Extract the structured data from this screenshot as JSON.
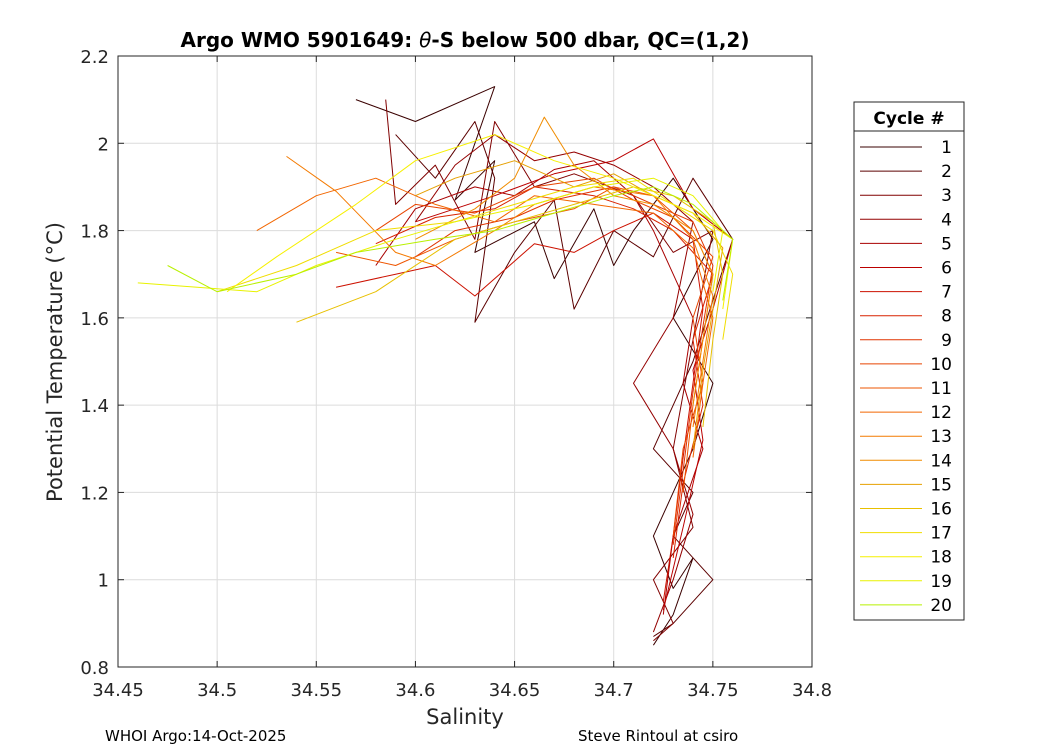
{
  "chart_data": {
    "type": "line",
    "title_prefix": "Argo WMO 5901649: ",
    "title_theta": "θ",
    "title_suffix": "-S below 500 dbar,  QC=(1,2)",
    "xlabel": "Salinity",
    "ylabel": "Potential Temperature (°C)",
    "xlim": [
      34.45,
      34.8
    ],
    "ylim": [
      0.8,
      2.2
    ],
    "x_ticks": [
      "34.45",
      "34.5",
      "34.55",
      "34.6",
      "34.65",
      "34.7",
      "34.75",
      "34.8"
    ],
    "y_ticks": [
      "0.8",
      "1",
      "1.2",
      "1.4",
      "1.6",
      "1.8",
      "2",
      "2.2"
    ],
    "grid": true,
    "legend_title": "Cycle #",
    "legend_position": "outside-right",
    "series": [
      {
        "name": "1",
        "color": "#3a0000",
        "x": [
          34.57,
          34.6,
          34.64,
          34.62,
          34.64,
          34.63,
          34.66,
          34.67,
          34.69,
          34.7,
          34.71,
          34.73,
          34.75,
          34.73,
          34.75,
          34.74,
          34.73,
          34.72,
          34.73,
          34.74,
          34.73,
          34.72
        ],
        "y": [
          2.1,
          2.05,
          2.13,
          1.87,
          1.96,
          1.75,
          1.82,
          1.69,
          1.85,
          1.72,
          1.8,
          1.92,
          1.78,
          1.6,
          1.45,
          1.3,
          1.2,
          1.1,
          0.98,
          1.05,
          0.92,
          0.85
        ]
      },
      {
        "name": "2",
        "color": "#5c0000",
        "x": [
          34.59,
          34.61,
          34.63,
          34.64,
          34.63,
          34.65,
          34.67,
          34.68,
          34.7,
          34.72,
          34.74,
          34.76,
          34.74,
          34.72,
          34.74,
          34.73,
          34.75,
          34.73,
          34.72
        ],
        "y": [
          2.02,
          1.92,
          2.05,
          1.92,
          1.59,
          1.75,
          1.87,
          1.62,
          1.8,
          1.74,
          1.92,
          1.78,
          1.5,
          1.3,
          1.2,
          1.1,
          1.0,
          0.9,
          0.87
        ]
      },
      {
        "name": "3",
        "color": "#800000",
        "x": [
          34.585,
          34.59,
          34.61,
          34.63,
          34.64,
          34.66,
          34.68,
          34.71,
          34.73,
          34.75,
          34.74,
          34.73,
          34.74,
          34.72,
          34.73,
          34.72
        ],
        "y": [
          2.1,
          1.86,
          1.95,
          1.78,
          2.05,
          1.9,
          1.93,
          1.88,
          1.75,
          1.8,
          1.55,
          1.3,
          1.12,
          1.0,
          0.9,
          0.86
        ]
      },
      {
        "name": "4",
        "color": "#940000",
        "x": [
          34.6,
          34.62,
          34.64,
          34.66,
          34.68,
          34.7,
          34.72,
          34.74,
          34.73,
          34.71,
          34.73,
          34.74,
          34.73,
          34.72
        ],
        "y": [
          1.82,
          1.95,
          2.02,
          1.96,
          1.98,
          1.95,
          1.9,
          1.82,
          1.6,
          1.45,
          1.3,
          1.15,
          1.0,
          0.88
        ]
      },
      {
        "name": "5",
        "color": "#a80000",
        "x": [
          34.58,
          34.6,
          34.63,
          34.65,
          34.67,
          34.69,
          34.71,
          34.72,
          34.73,
          34.74,
          34.735,
          34.745,
          34.73,
          34.725
        ],
        "y": [
          1.72,
          1.85,
          1.9,
          1.88,
          1.94,
          1.96,
          1.88,
          1.8,
          1.7,
          1.6,
          1.45,
          1.3,
          1.1,
          0.92
        ]
      },
      {
        "name": "6",
        "color": "#bb0000",
        "x": [
          34.6,
          34.64,
          34.67,
          34.7,
          34.72,
          34.74,
          34.76,
          34.75,
          34.74,
          34.745,
          34.735,
          34.725
        ],
        "y": [
          1.82,
          1.88,
          1.93,
          1.96,
          2.01,
          1.85,
          1.78,
          1.62,
          1.48,
          1.32,
          1.12,
          0.93
        ]
      },
      {
        "name": "7",
        "color": "#cc1100",
        "x": [
          34.56,
          34.59,
          34.61,
          34.63,
          34.66,
          34.68,
          34.7,
          34.72,
          34.74,
          34.745,
          34.74,
          34.735,
          34.73,
          34.725
        ],
        "y": [
          1.67,
          1.7,
          1.72,
          1.65,
          1.77,
          1.75,
          1.8,
          1.84,
          1.78,
          1.62,
          1.45,
          1.28,
          1.1,
          0.95
        ]
      },
      {
        "name": "8",
        "color": "#d82200",
        "x": [
          34.58,
          34.61,
          34.64,
          34.66,
          34.69,
          34.71,
          34.73,
          34.75,
          34.74,
          34.745,
          34.735,
          34.73
        ],
        "y": [
          1.77,
          1.83,
          1.85,
          1.9,
          1.88,
          1.85,
          1.8,
          1.7,
          1.55,
          1.4,
          1.22,
          1.05
        ]
      },
      {
        "name": "9",
        "color": "#e03300",
        "x": [
          34.6,
          34.62,
          34.65,
          34.67,
          34.7,
          34.72,
          34.74,
          34.75,
          34.745,
          34.74,
          34.735,
          34.73
        ],
        "y": [
          1.74,
          1.8,
          1.83,
          1.87,
          1.9,
          1.86,
          1.82,
          1.72,
          1.58,
          1.43,
          1.25,
          1.08
        ]
      },
      {
        "name": "10",
        "color": "#e84400",
        "x": [
          34.58,
          34.6,
          34.63,
          34.66,
          34.69,
          34.71,
          34.73,
          34.75,
          34.74,
          34.745,
          34.735,
          34.73
        ],
        "y": [
          1.8,
          1.86,
          1.84,
          1.9,
          1.92,
          1.87,
          1.83,
          1.74,
          1.6,
          1.45,
          1.3,
          1.1
        ]
      },
      {
        "name": "11",
        "color": "#ee5500",
        "x": [
          34.56,
          34.59,
          34.62,
          34.65,
          34.68,
          34.7,
          34.72,
          34.74,
          34.75,
          34.745,
          34.74,
          34.735
        ],
        "y": [
          1.75,
          1.72,
          1.78,
          1.82,
          1.85,
          1.9,
          1.88,
          1.8,
          1.7,
          1.55,
          1.4,
          1.2
        ]
      },
      {
        "name": "12",
        "color": "#f26600",
        "x": [
          34.52,
          34.55,
          34.58,
          34.61,
          34.64,
          34.66,
          34.69,
          34.72,
          34.74,
          34.75,
          34.745,
          34.74
        ],
        "y": [
          1.8,
          1.88,
          1.92,
          1.86,
          1.82,
          1.88,
          1.86,
          1.84,
          1.76,
          1.6,
          1.45,
          1.28
        ]
      },
      {
        "name": "13",
        "color": "#f47a00",
        "x": [
          34.535,
          34.56,
          34.59,
          34.61,
          34.64,
          34.66,
          34.69,
          34.72,
          34.74,
          34.75,
          34.745,
          34.74
        ],
        "y": [
          1.97,
          1.89,
          1.75,
          1.72,
          1.8,
          1.86,
          1.9,
          1.88,
          1.78,
          1.65,
          1.5,
          1.35
        ]
      },
      {
        "name": "14",
        "color": "#f08c00",
        "x": [
          34.6,
          34.63,
          34.65,
          34.665,
          34.68,
          34.7,
          34.72,
          34.74,
          34.75,
          34.745,
          34.74
        ],
        "y": [
          1.78,
          1.85,
          1.92,
          2.06,
          1.95,
          1.88,
          1.86,
          1.8,
          1.7,
          1.55,
          1.4
        ]
      },
      {
        "name": "15",
        "color": "#e6a000",
        "x": [
          34.6,
          34.62,
          34.65,
          34.68,
          34.7,
          34.72,
          34.74,
          34.755,
          34.75,
          34.745,
          34.74
        ],
        "y": [
          1.88,
          1.92,
          1.96,
          1.9,
          1.93,
          1.88,
          1.84,
          1.76,
          1.62,
          1.48,
          1.3
        ]
      },
      {
        "name": "16",
        "color": "#e8c000",
        "x": [
          34.54,
          34.58,
          34.62,
          34.65,
          34.68,
          34.71,
          34.73,
          34.75,
          34.755,
          34.75,
          34.745
        ],
        "y": [
          1.59,
          1.66,
          1.78,
          1.82,
          1.86,
          1.9,
          1.88,
          1.82,
          1.7,
          1.55,
          1.35
        ]
      },
      {
        "name": "17",
        "color": "#f0dd00",
        "x": [
          34.5,
          34.54,
          34.58,
          34.62,
          34.65,
          34.68,
          34.71,
          34.73,
          34.75,
          34.76,
          34.755
        ],
        "y": [
          1.66,
          1.72,
          1.8,
          1.82,
          1.86,
          1.9,
          1.92,
          1.86,
          1.8,
          1.7,
          1.55
        ]
      },
      {
        "name": "18",
        "color": "#f6f000",
        "x": [
          34.505,
          34.53,
          34.57,
          34.6,
          34.64,
          34.67,
          34.7,
          34.72,
          34.74,
          34.76,
          34.755
        ],
        "y": [
          1.66,
          1.74,
          1.86,
          1.96,
          2.02,
          1.96,
          1.92,
          1.88,
          1.84,
          1.78,
          1.62
        ]
      },
      {
        "name": "19",
        "color": "#e8f200",
        "x": [
          34.46,
          34.49,
          34.52,
          34.55,
          34.59,
          34.62,
          34.66,
          34.69,
          34.72,
          34.74,
          34.755,
          34.75
        ],
        "y": [
          1.68,
          1.67,
          1.66,
          1.72,
          1.78,
          1.82,
          1.86,
          1.9,
          1.92,
          1.88,
          1.8,
          1.66
        ]
      },
      {
        "name": "20",
        "color": "#b8f000",
        "x": [
          34.475,
          34.5,
          34.54,
          34.57,
          34.61,
          34.64,
          34.67,
          34.7,
          34.72,
          34.74,
          34.76,
          34.755
        ],
        "y": [
          1.72,
          1.66,
          1.7,
          1.75,
          1.78,
          1.8,
          1.84,
          1.88,
          1.9,
          1.86,
          1.78,
          1.64
        ]
      }
    ]
  },
  "footer": {
    "left": "WHOI Argo:14-Oct-2025",
    "right": "Steve Rintoul at csiro"
  }
}
